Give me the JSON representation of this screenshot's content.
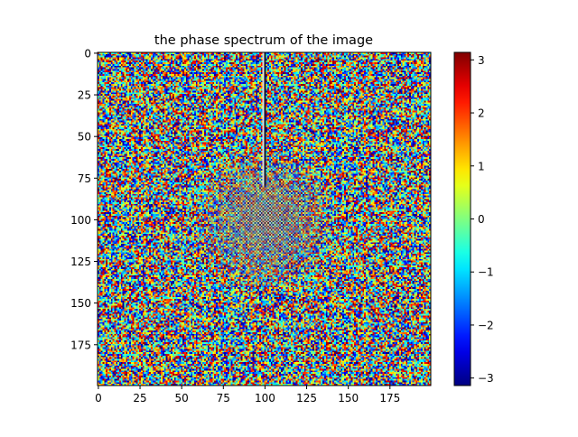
{
  "chart_data": {
    "type": "heatmap",
    "title": "the phase spectrum of the image",
    "xlabel": "",
    "ylabel": "",
    "grid": false,
    "image_size": [
      200,
      200
    ],
    "xlim": [
      0,
      199
    ],
    "ylim": [
      199,
      0
    ],
    "x_ticks": [
      0,
      25,
      50,
      75,
      100,
      125,
      150,
      175
    ],
    "y_ticks": [
      0,
      25,
      50,
      75,
      100,
      125,
      150,
      175
    ],
    "colormap": "jet",
    "colorbar": {
      "range": [
        -3.14159,
        3.14159
      ],
      "ticks": [
        -3,
        -2,
        -1,
        0,
        1,
        2,
        3
      ],
      "tick_labels": [
        "−3",
        "−2",
        "−1",
        "0",
        "1",
        "2",
        "3"
      ]
    },
    "features": [
      "random-looking phase noise across full image",
      "thin vertical stripe at x=100 from y=0 to about y=80",
      "checkerboard grey pattern around center (100,100)"
    ]
  }
}
